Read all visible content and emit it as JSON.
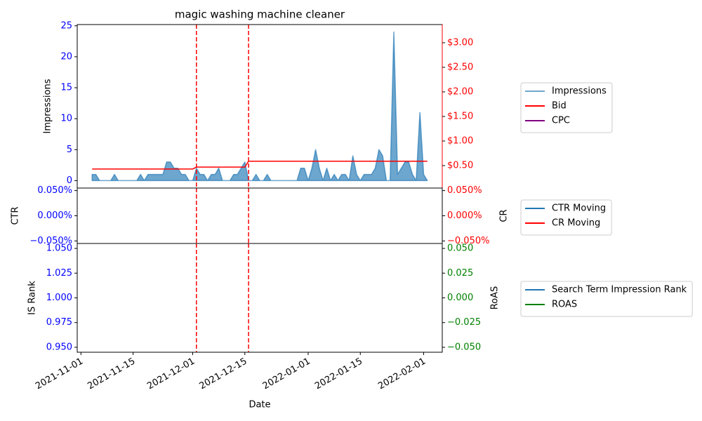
{
  "chart_data": [
    {
      "type": "line",
      "title": "magic washing machine cleaner",
      "ylabel": "Impressions",
      "xlim": [
        "2021-10-31",
        "2022-02-06"
      ],
      "ylim": [
        -1.2,
        25.2
      ],
      "yticks": [
        0,
        5,
        10,
        15,
        20,
        25
      ],
      "ytick_color": "#0000ff",
      "y2lim": [
        0.043,
        3.37
      ],
      "y2ticks": [
        {
          "value": 0.5,
          "label": "$0.50"
        },
        {
          "value": 1,
          "label": "$1.00"
        },
        {
          "value": 1.5,
          "label": "$1.50"
        },
        {
          "value": 2,
          "label": "$2.00"
        },
        {
          "value": 2.5,
          "label": "$2.50"
        },
        {
          "value": 3,
          "label": "$3.00"
        }
      ],
      "y2tick_color": "#ff0000",
      "vlines": [
        "2021-12-02",
        "2021-12-16"
      ],
      "vline_color": "#ff0000",
      "series": [
        {
          "name": "Impressions",
          "color": "#1f77b4",
          "fill": true,
          "x": [
            "2021-11-04",
            "2021-11-05",
            "2021-11-06",
            "2021-11-07",
            "2021-11-08",
            "2021-11-09",
            "2021-11-10",
            "2021-11-11",
            "2021-11-12",
            "2021-11-13",
            "2021-11-14",
            "2021-11-15",
            "2021-11-16",
            "2021-11-17",
            "2021-11-18",
            "2021-11-19",
            "2021-11-20",
            "2021-11-21",
            "2021-11-22",
            "2021-11-23",
            "2021-11-24",
            "2021-11-25",
            "2021-11-26",
            "2021-11-27",
            "2021-11-28",
            "2021-11-29",
            "2021-11-30",
            "2021-12-01",
            "2021-12-02",
            "2021-12-03",
            "2021-12-04",
            "2021-12-05",
            "2021-12-06",
            "2021-12-07",
            "2021-12-08",
            "2021-12-09",
            "2021-12-10",
            "2021-12-11",
            "2021-12-12",
            "2021-12-13",
            "2021-12-14",
            "2021-12-15",
            "2021-12-16",
            "2021-12-17",
            "2021-12-18",
            "2021-12-19",
            "2021-12-20",
            "2021-12-21",
            "2021-12-22",
            "2021-12-23",
            "2021-12-24",
            "2021-12-25",
            "2021-12-26",
            "2021-12-27",
            "2021-12-28",
            "2021-12-29",
            "2021-12-30",
            "2021-12-31",
            "2022-01-01",
            "2022-01-02",
            "2022-01-03",
            "2022-01-04",
            "2022-01-05",
            "2022-01-06",
            "2022-01-07",
            "2022-01-08",
            "2022-01-09",
            "2022-01-10",
            "2022-01-11",
            "2022-01-12",
            "2022-01-13",
            "2022-01-14",
            "2022-01-15",
            "2022-01-16",
            "2022-01-17",
            "2022-01-18",
            "2022-01-19",
            "2022-01-20",
            "2022-01-21",
            "2022-01-22",
            "2022-01-23",
            "2022-01-24",
            "2022-01-25",
            "2022-01-26",
            "2022-01-27",
            "2022-01-28",
            "2022-01-29",
            "2022-01-30",
            "2022-01-31",
            "2022-02-01",
            "2022-02-02"
          ],
          "values": [
            1,
            1,
            0,
            0,
            0,
            0,
            1,
            0,
            0,
            0,
            0,
            0,
            0,
            1,
            0,
            1,
            1,
            1,
            1,
            1,
            3,
            3,
            2,
            2,
            1,
            1,
            0,
            0,
            2,
            1,
            1,
            0,
            1,
            1,
            2,
            0,
            0,
            0,
            1,
            1,
            2,
            3,
            0,
            0,
            1,
            0,
            0,
            1,
            0,
            0,
            0,
            0,
            0,
            0,
            0,
            0,
            2,
            2,
            0,
            2,
            5,
            2,
            0,
            2,
            0,
            1,
            0,
            1,
            1,
            0,
            4,
            1,
            0,
            1,
            1,
            1,
            2,
            5,
            4,
            0,
            0,
            24,
            1,
            2,
            3,
            3,
            1,
            0,
            11,
            1,
            0
          ]
        },
        {
          "name": "Bid",
          "color": "#ff0000",
          "axis": "y2",
          "x": [
            "2021-11-04",
            "2021-12-01",
            "2021-12-02",
            "2021-12-15",
            "2021-12-16",
            "2022-02-02"
          ],
          "values": [
            0.43,
            0.43,
            0.47,
            0.47,
            0.59,
            0.59
          ]
        },
        {
          "name": "CPC",
          "color": "#800080",
          "axis": "y2",
          "x": [],
          "values": []
        }
      ]
    },
    {
      "type": "line",
      "ylabel": "CTR",
      "y2label": "CR",
      "xlim": [
        "2021-10-31",
        "2022-02-06"
      ],
      "ylim": [
        -0.055,
        0.055
      ],
      "yticks": [
        {
          "value": -0.05,
          "label": "−0.050%"
        },
        {
          "value": 0,
          "label": "0.000%"
        },
        {
          "value": 0.05,
          "label": "0.050%"
        }
      ],
      "ytick_color": "#0000ff",
      "y2lim": [
        -0.055,
        0.055
      ],
      "y2ticks": [
        {
          "value": -0.05,
          "label": "−0.050%"
        },
        {
          "value": 0,
          "label": "0.000%"
        },
        {
          "value": 0.05,
          "label": "0.050%"
        }
      ],
      "y2tick_color": "#ff0000",
      "vlines": [
        "2021-12-02",
        "2021-12-16"
      ],
      "vline_color": "#ff0000",
      "series": [
        {
          "name": "CTR Moving",
          "color": "#1f77b4",
          "x": [],
          "values": []
        },
        {
          "name": "CR Moving",
          "color": "#ff0000",
          "axis": "y2",
          "x": [],
          "values": []
        }
      ]
    },
    {
      "type": "line",
      "ylabel": "IS Rank",
      "y2label": "RoAS",
      "xlabel": "Date",
      "xlim": [
        "2021-10-31",
        "2022-02-06"
      ],
      "xticks": [
        "2021-11-01",
        "2021-11-15",
        "2021-12-01",
        "2021-12-15",
        "2022-01-01",
        "2022-01-15",
        "2022-02-01"
      ],
      "ylim": [
        0.945,
        1.055
      ],
      "yticks": [
        {
          "value": 0.95,
          "label": "0.950"
        },
        {
          "value": 0.975,
          "label": "0.975"
        },
        {
          "value": 1,
          "label": "1.000"
        },
        {
          "value": 1.025,
          "label": "1.025"
        },
        {
          "value": 1.05,
          "label": "1.050"
        }
      ],
      "ytick_color": "#0000ff",
      "y2lim": [
        -0.055,
        0.055
      ],
      "y2ticks": [
        {
          "value": -0.05,
          "label": "−0.050"
        },
        {
          "value": -0.025,
          "label": "−0.025"
        },
        {
          "value": 0,
          "label": "0.000"
        },
        {
          "value": 0.025,
          "label": "0.025"
        },
        {
          "value": 0.05,
          "label": "0.050"
        }
      ],
      "y2tick_color": "#008000",
      "vlines": [
        "2021-12-02",
        "2021-12-16"
      ],
      "vline_color": "#ff0000",
      "series": [
        {
          "name": "Search Term Impression Rank",
          "color": "#1f77b4",
          "x": [],
          "values": []
        },
        {
          "name": "ROAS",
          "color": "#008000",
          "axis": "y2",
          "x": [],
          "values": []
        }
      ]
    }
  ]
}
